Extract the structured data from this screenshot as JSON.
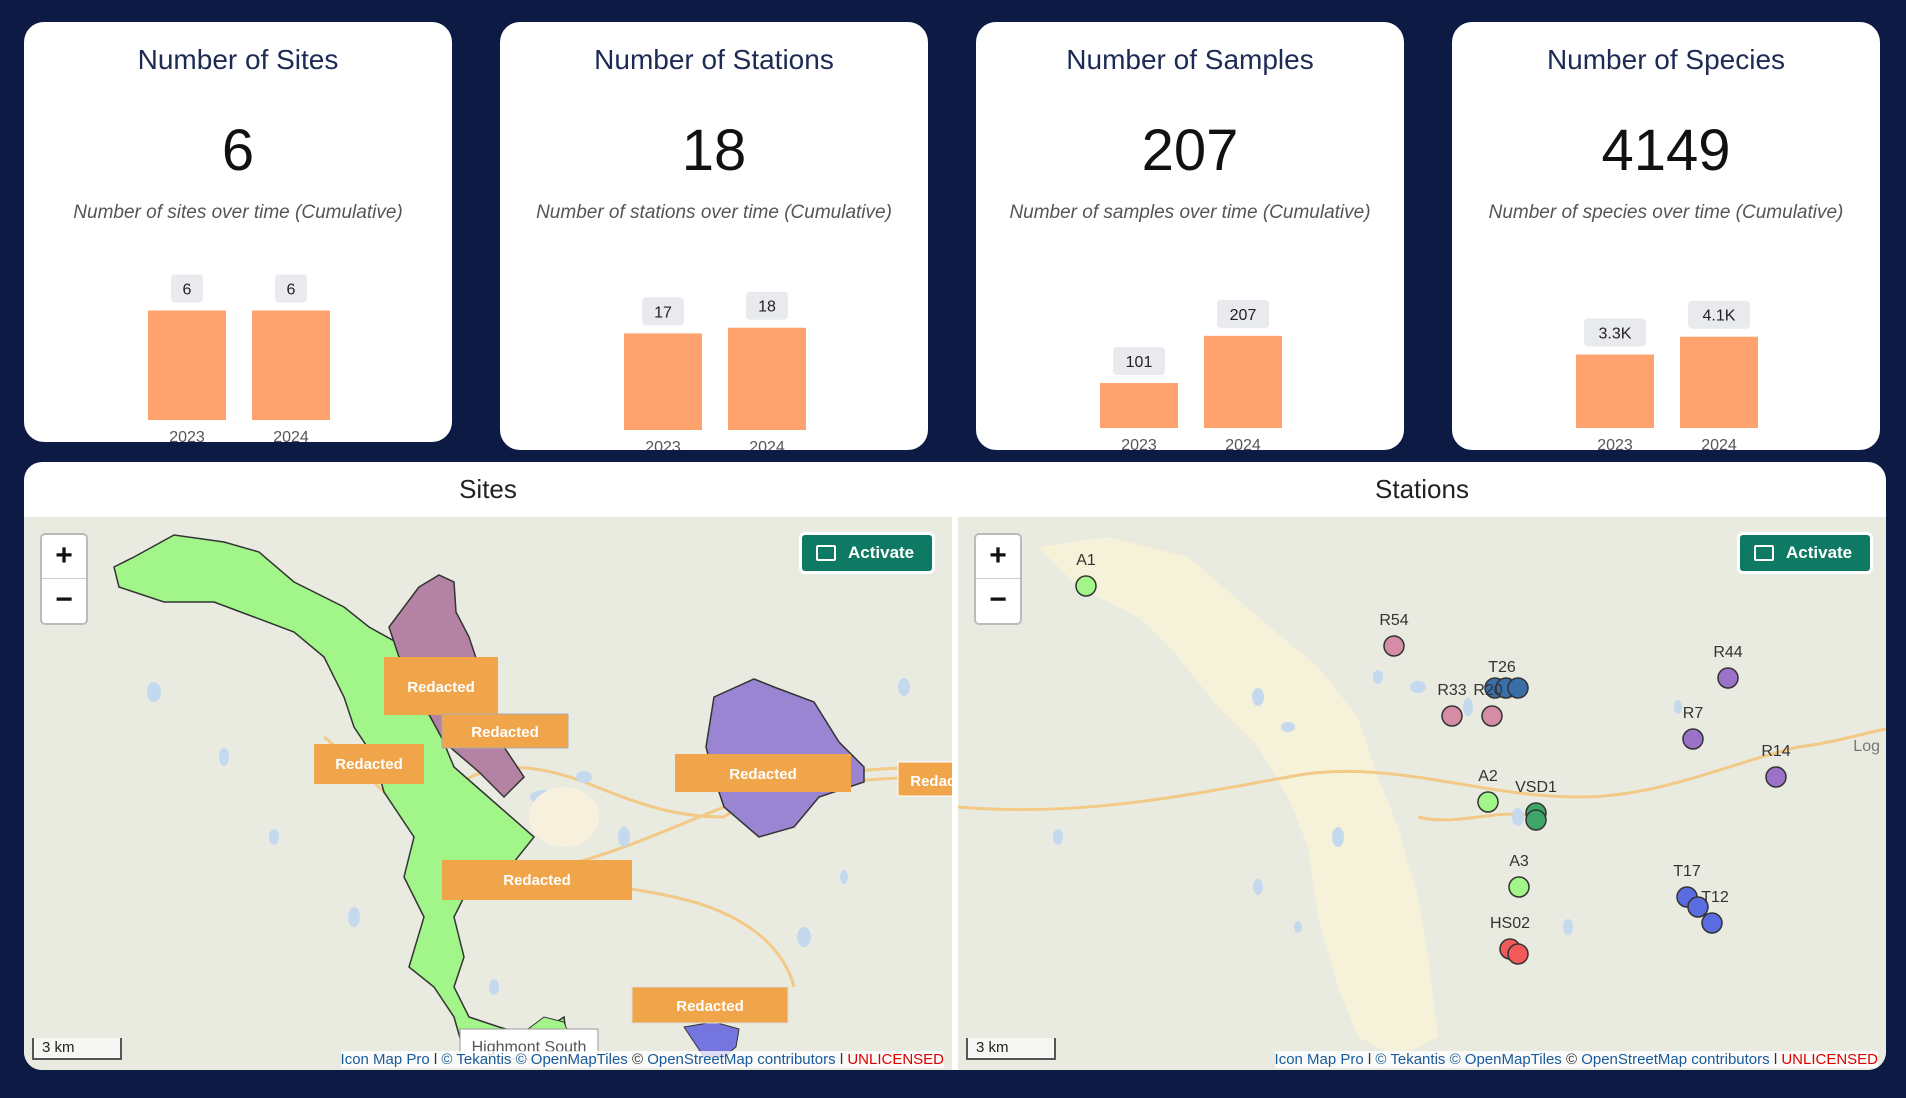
{
  "cards": [
    {
      "title": "Number of Sites",
      "value": "6",
      "subtitle": "Number of sites over time (Cumulative)",
      "categories": [
        "2023",
        "2024"
      ],
      "values": [
        6,
        6
      ],
      "labels": [
        "6",
        "6"
      ],
      "ymax": 8
    },
    {
      "title": "Number of Stations",
      "value": "18",
      "subtitle": "Number of stations over time (Cumulative)",
      "categories": [
        "2023",
        "2024"
      ],
      "values": [
        17,
        18
      ],
      "labels": [
        "17",
        "18"
      ],
      "ymax": 22
    },
    {
      "title": "Number of Samples",
      "value": "207",
      "subtitle": "Number of samples over time (Cumulative)",
      "categories": [
        "2023",
        "2024"
      ],
      "values": [
        101,
        207
      ],
      "labels": [
        "101",
        "207"
      ],
      "ymax": 265
    },
    {
      "title": "Number of Species",
      "value": "4149",
      "subtitle": "Number of species over time (Cumulative)",
      "categories": [
        "2023",
        "2024"
      ],
      "values": [
        3300,
        4100
      ],
      "labels": [
        "3.3K",
        "4.1K"
      ],
      "ymax": 5300
    }
  ],
  "chart_data": [
    {
      "type": "bar",
      "title": "Number of sites over time (Cumulative)",
      "categories": [
        "2023",
        "2024"
      ],
      "values": [
        6,
        6
      ]
    },
    {
      "type": "bar",
      "title": "Number of stations over time (Cumulative)",
      "categories": [
        "2023",
        "2024"
      ],
      "values": [
        17,
        18
      ]
    },
    {
      "type": "bar",
      "title": "Number of samples over time (Cumulative)",
      "categories": [
        "2023",
        "2024"
      ],
      "values": [
        101,
        207
      ]
    },
    {
      "type": "bar",
      "title": "Number of species over time (Cumulative)",
      "categories": [
        "2023",
        "2024"
      ],
      "values": [
        3300,
        4100
      ]
    }
  ],
  "colors": {
    "bar": "#ffa36e",
    "background": "#0c1a44",
    "activate": "#0e7a63",
    "redacted": "#f0a54a"
  },
  "sites_map": {
    "title": "Sites",
    "zoom_in": "+",
    "zoom_out": "−",
    "activate": "Activate",
    "scale": "3 km",
    "place_label": "Highmont South",
    "redacted": [
      "Redacted",
      "Redacted",
      "Redacted",
      "Redacted",
      "Redacted",
      "Redacted",
      "Redacted"
    ],
    "attribution": {
      "a": "Icon Map Pro",
      "b": "© Tekantis ©",
      "c": "OpenMapTiles",
      "d": "©",
      "e": "OpenStreetMap contributors",
      "f": "UNLICENSED"
    }
  },
  "stations_map": {
    "title": "Stations",
    "zoom_in": "+",
    "zoom_out": "−",
    "activate": "Activate",
    "scale": "3 km",
    "edge_label": "Log",
    "stations": [
      "A1",
      "R54",
      "T26",
      "R33",
      "R20",
      "R44",
      "R7",
      "R14",
      "A2",
      "VSD1",
      "A3",
      "T17",
      "T12",
      "HS02"
    ],
    "attribution": {
      "a": "Icon Map Pro",
      "b": "© Tekantis ©",
      "c": "OpenMapTiles",
      "d": "©",
      "e": "OpenStreetMap contributors",
      "f": "UNLICENSED"
    }
  }
}
